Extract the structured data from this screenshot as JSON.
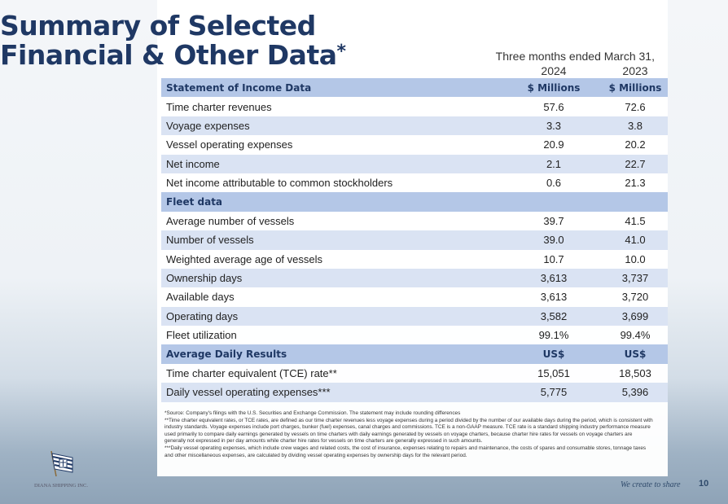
{
  "title": {
    "line1": "Summary of Selected",
    "line2": "Financial & Other Data",
    "mark": "*"
  },
  "period": {
    "label": "Three months ended March 31,",
    "year1": "2024",
    "year2": "2023"
  },
  "sections": [
    {
      "header": {
        "label": "Statement of Income Data",
        "c1": "$ Millions",
        "c2": "$ Millions"
      },
      "rows": [
        {
          "label": "Time charter revenues",
          "v1": "57.6",
          "v2": "72.6"
        },
        {
          "label": "Voyage expenses",
          "v1": "3.3",
          "v2": "3.8"
        },
        {
          "label": "Vessel operating expenses",
          "v1": "20.9",
          "v2": "20.2"
        },
        {
          "label": "Net income",
          "v1": "2.1",
          "v2": "22.7"
        },
        {
          "label": "Net income attributable to common stockholders",
          "v1": "0.6",
          "v2": "21.3"
        }
      ]
    },
    {
      "header": {
        "label": "Fleet data",
        "c1": "",
        "c2": ""
      },
      "rows": [
        {
          "label": "Average number of vessels",
          "v1": "39.7",
          "v2": "41.5"
        },
        {
          "label": "Number of vessels",
          "v1": "39.0",
          "v2": "41.0"
        },
        {
          "label": "Weighted average age of vessels",
          "v1": "10.7",
          "v2": "10.0"
        },
        {
          "label": "Ownership days",
          "v1": "3,613",
          "v2": "3,737"
        },
        {
          "label": "Available days",
          "v1": "3,613",
          "v2": "3,720"
        },
        {
          "label": "Operating days",
          "v1": "3,582",
          "v2": "3,699"
        },
        {
          "label": "Fleet utilization",
          "v1": "99.1%",
          "v2": "99.4%"
        }
      ]
    },
    {
      "header": {
        "label": "Average Daily Results",
        "c1": "US$",
        "c2": "US$"
      },
      "rows": [
        {
          "label": "Time charter equivalent (TCE) rate**",
          "v1": "15,051",
          "v2": "18,503"
        },
        {
          "label": "Daily vessel operating expenses***",
          "v1": "5,775",
          "v2": "5,396"
        }
      ]
    }
  ],
  "notes": [
    "*Source: Company's filings with the U.S. Securities and Exchange Commission. The statement may include rounding differences",
    "**Time charter equivalent rates, or TCE rates, are defined as our time charter revenues less voyage expenses during a period divided by the number of our available days during the period, which is consistent with industry standards.  Voyage expenses include port charges, bunker (fuel) expenses, canal charges and commissions.  TCE is a non-GAAP measure.  TCE rate is a standard shipping industry performance measure used primarily to compare daily earnings generated by vessels on time charters with daily earnings generated by vessels on voyage charters, because charter hire rates for vessels on voyage charters are generally not expressed in per day amounts while charter hire rates for vessels on time charters are generally expressed in such amounts.",
    "***Daily vessel operating expenses, which include crew wages and related costs, the cost of insurance, expenses relating to repairs and maintenance, the costs of spares and consumable stores, tonnage taxes and other miscellaneous expenses, are calculated by dividing vessel operating expenses by ownership days for the relevant period."
  ],
  "footer": {
    "company": "DIANA SHIPPING INC.",
    "tagline": "We create to share",
    "page": "10"
  }
}
